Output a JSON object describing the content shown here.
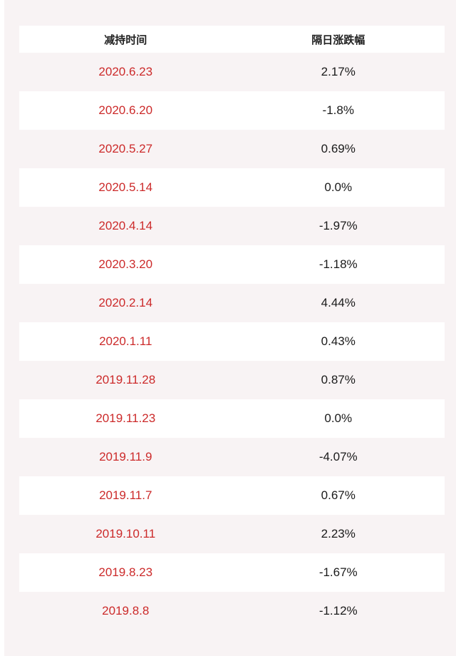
{
  "table": {
    "headers": [
      "减持时间",
      "隔日涨跌幅"
    ],
    "rows": [
      {
        "date": "2020.6.23",
        "change": "2.17%"
      },
      {
        "date": "2020.6.20",
        "change": "-1.8%"
      },
      {
        "date": "2020.5.27",
        "change": "0.69%"
      },
      {
        "date": "2020.5.14",
        "change": "0.0%"
      },
      {
        "date": "2020.4.14",
        "change": "-1.97%"
      },
      {
        "date": "2020.3.20",
        "change": "-1.18%"
      },
      {
        "date": "2020.2.14",
        "change": "4.44%"
      },
      {
        "date": "2020.1.11",
        "change": "0.43%"
      },
      {
        "date": "2019.11.28",
        "change": "0.87%"
      },
      {
        "date": "2019.11.23",
        "change": "0.0%"
      },
      {
        "date": "2019.11.9",
        "change": "-4.07%"
      },
      {
        "date": "2019.11.7",
        "change": "0.67%"
      },
      {
        "date": "2019.10.11",
        "change": "2.23%"
      },
      {
        "date": "2019.8.23",
        "change": "-1.67%"
      },
      {
        "date": "2019.8.8",
        "change": "-1.12%"
      }
    ]
  },
  "colors": {
    "date_text": "#cc2a2a",
    "change_text": "#1a1a1a",
    "stripe": "#f8f3f4",
    "row": "#ffffff"
  }
}
